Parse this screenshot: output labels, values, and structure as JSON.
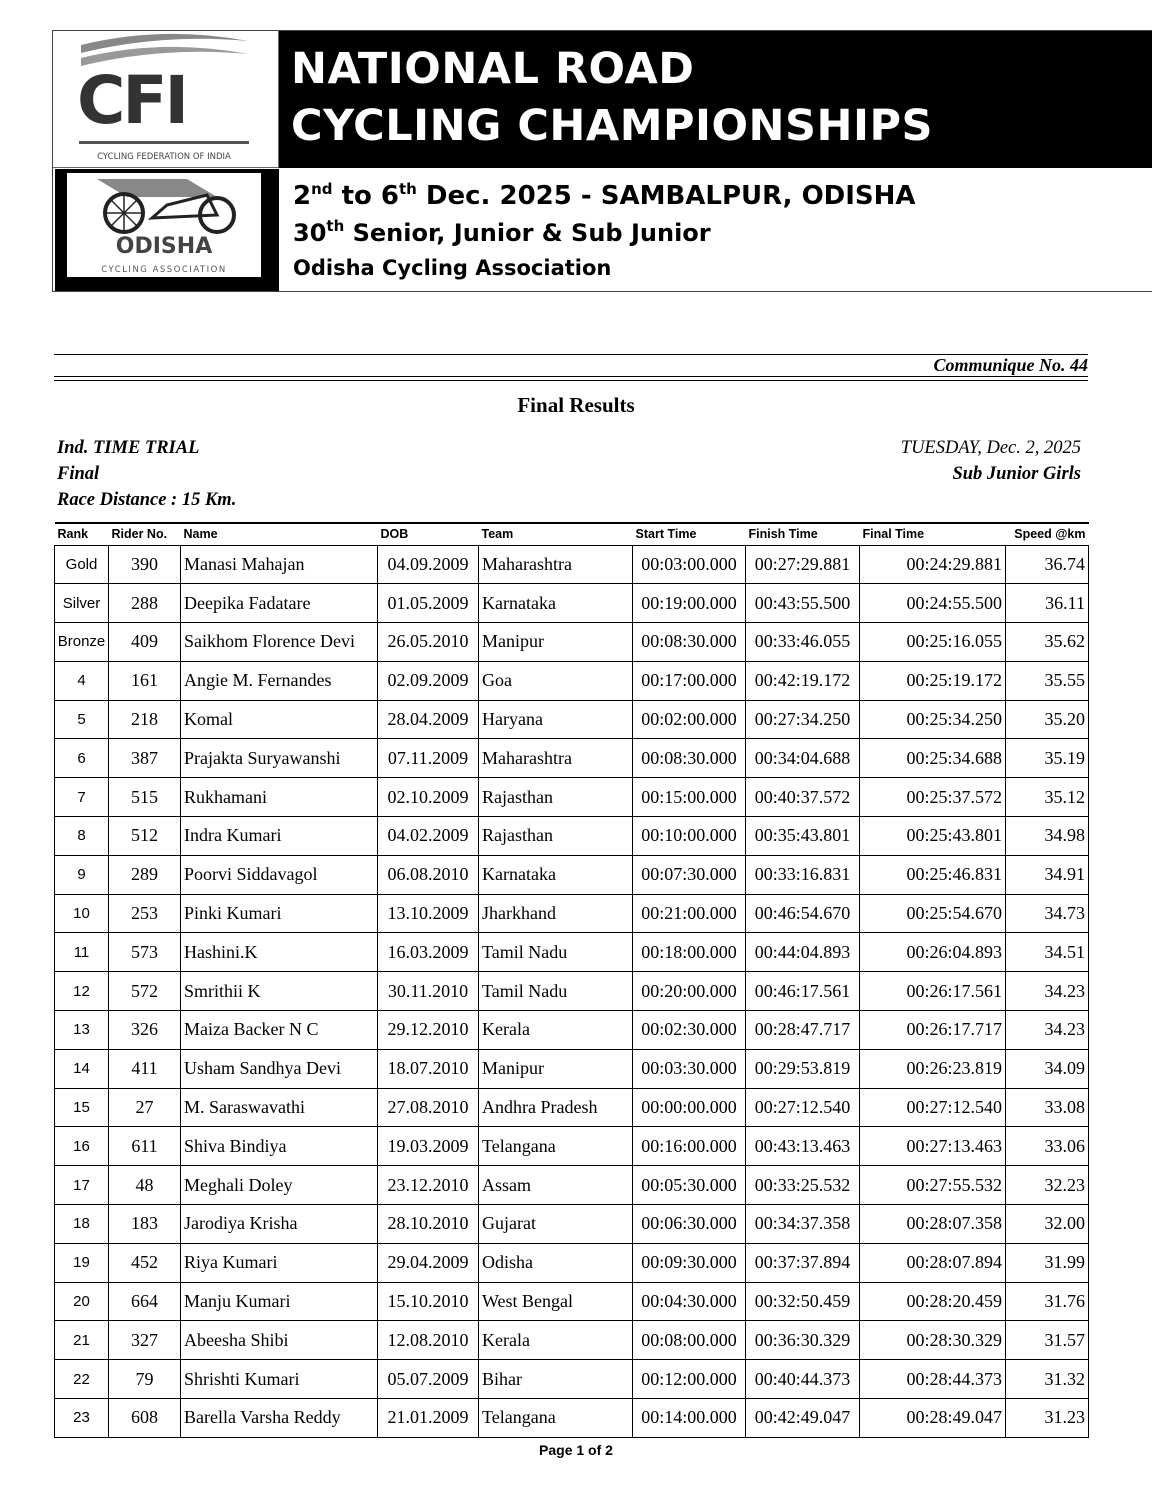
{
  "header": {
    "logo_cfi": {
      "letters": "CFI",
      "caption": "CYCLING FEDERATION OF INDIA"
    },
    "logo_odisha": {
      "letters": "ODISHA",
      "caption": "CYCLING ASSOCIATION"
    },
    "title_line1": "NATIONAL ROAD",
    "title_line2": "CYCLING CHAMPIONSHIPS",
    "dates_a": "2",
    "dates_a_sup": "nd",
    "dates_b": " to 6",
    "dates_b_sup": "th",
    "dates_c": " Dec. 2025 - SAMBALPUR, ODISHA",
    "edition": "30",
    "edition_sup": "th",
    "edition_rest": " Senior, Junior & Sub Junior",
    "organizer": "Odisha Cycling Association"
  },
  "communique": "Communique No. 44",
  "title": "Final Results",
  "event": {
    "name": "Ind. TIME TRIAL",
    "round": "Final",
    "distance": "Race Distance : 15 Km.",
    "date": "TUESDAY, Dec. 2, 2025",
    "category": "Sub Junior Girls"
  },
  "table": {
    "columns": [
      "Rank",
      "Rider No.",
      "Name",
      "DOB",
      "Team",
      "Start Time",
      "Finish Time",
      "Final Time",
      "Speed @km"
    ],
    "rows": [
      [
        "Gold",
        "390",
        "Manasi Mahajan",
        "04.09.2009",
        "Maharashtra",
        "00:03:00.000",
        "00:27:29.881",
        "00:24:29.881",
        "36.74"
      ],
      [
        "Silver",
        "288",
        "Deepika  Fadatare",
        "01.05.2009",
        "Karnataka",
        "00:19:00.000",
        "00:43:55.500",
        "00:24:55.500",
        "36.11"
      ],
      [
        "Bronze",
        "409",
        "Saikhom Florence Devi",
        "26.05.2010",
        "Manipur",
        "00:08:30.000",
        "00:33:46.055",
        "00:25:16.055",
        "35.62"
      ],
      [
        "4",
        "161",
        "Angie M. Fernandes",
        "02.09.2009",
        "Goa",
        "00:17:00.000",
        "00:42:19.172",
        "00:25:19.172",
        "35.55"
      ],
      [
        "5",
        "218",
        "Komal",
        "28.04.2009",
        "Haryana",
        "00:02:00.000",
        "00:27:34.250",
        "00:25:34.250",
        "35.20"
      ],
      [
        "6",
        "387",
        "Prajakta Suryawanshi",
        "07.11.2009",
        "Maharashtra",
        "00:08:30.000",
        "00:34:04.688",
        "00:25:34.688",
        "35.19"
      ],
      [
        "7",
        "515",
        "Rukhamani",
        "02.10.2009",
        "Rajasthan",
        "00:15:00.000",
        "00:40:37.572",
        "00:25:37.572",
        "35.12"
      ],
      [
        "8",
        "512",
        "Indra Kumari",
        "04.02.2009",
        "Rajasthan",
        "00:10:00.000",
        "00:35:43.801",
        "00:25:43.801",
        "34.98"
      ],
      [
        "9",
        "289",
        "Poorvi  Siddavagol",
        "06.08.2010",
        "Karnataka",
        "00:07:30.000",
        "00:33:16.831",
        "00:25:46.831",
        "34.91"
      ],
      [
        "10",
        "253",
        "Pinki Kumari",
        "13.10.2009",
        "Jharkhand",
        "00:21:00.000",
        "00:46:54.670",
        "00:25:54.670",
        "34.73"
      ],
      [
        "11",
        "573",
        "Hashini.K",
        "16.03.2009",
        "Tamil Nadu",
        "00:18:00.000",
        "00:44:04.893",
        "00:26:04.893",
        "34.51"
      ],
      [
        "12",
        "572",
        "Smrithii K",
        "30.11.2010",
        "Tamil Nadu",
        "00:20:00.000",
        "00:46:17.561",
        "00:26:17.561",
        "34.23"
      ],
      [
        "13",
        "326",
        "Maiza Backer N C",
        "29.12.2010",
        "Kerala",
        "00:02:30.000",
        "00:28:47.717",
        "00:26:17.717",
        "34.23"
      ],
      [
        "14",
        "411",
        "Usham Sandhya Devi",
        "18.07.2010",
        "Manipur",
        "00:03:30.000",
        "00:29:53.819",
        "00:26:23.819",
        "34.09"
      ],
      [
        "15",
        "27",
        "M. Saraswavathi",
        "27.08.2010",
        "Andhra Pradesh",
        "00:00:00.000",
        "00:27:12.540",
        "00:27:12.540",
        "33.08"
      ],
      [
        "16",
        "611",
        "Shiva Bindiya",
        "19.03.2009",
        "Telangana",
        "00:16:00.000",
        "00:43:13.463",
        "00:27:13.463",
        "33.06"
      ],
      [
        "17",
        "48",
        "Meghali Doley",
        "23.12.2010",
        "Assam",
        "00:05:30.000",
        "00:33:25.532",
        "00:27:55.532",
        "32.23"
      ],
      [
        "18",
        "183",
        "Jarodiya Krisha",
        "28.10.2010",
        "Gujarat",
        "00:06:30.000",
        "00:34:37.358",
        "00:28:07.358",
        "32.00"
      ],
      [
        "19",
        "452",
        "Riya Kumari",
        "29.04.2009",
        "Odisha",
        "00:09:30.000",
        "00:37:37.894",
        "00:28:07.894",
        "31.99"
      ],
      [
        "20",
        "664",
        "Manju Kumari",
        "15.10.2010",
        "West Bengal",
        "00:04:30.000",
        "00:32:50.459",
        "00:28:20.459",
        "31.76"
      ],
      [
        "21",
        "327",
        "Abeesha Shibi",
        "12.08.2010",
        "Kerala",
        "00:08:00.000",
        "00:36:30.329",
        "00:28:30.329",
        "31.57"
      ],
      [
        "22",
        "79",
        "Shrishti Kumari",
        "05.07.2009",
        "Bihar",
        "00:12:00.000",
        "00:40:44.373",
        "00:28:44.373",
        "31.32"
      ],
      [
        "23",
        "608",
        "Barella Varsha Reddy",
        "21.01.2009",
        "Telangana",
        "00:14:00.000",
        "00:42:49.047",
        "00:28:49.047",
        "31.23"
      ]
    ]
  },
  "footer": "Page 1 of 2"
}
